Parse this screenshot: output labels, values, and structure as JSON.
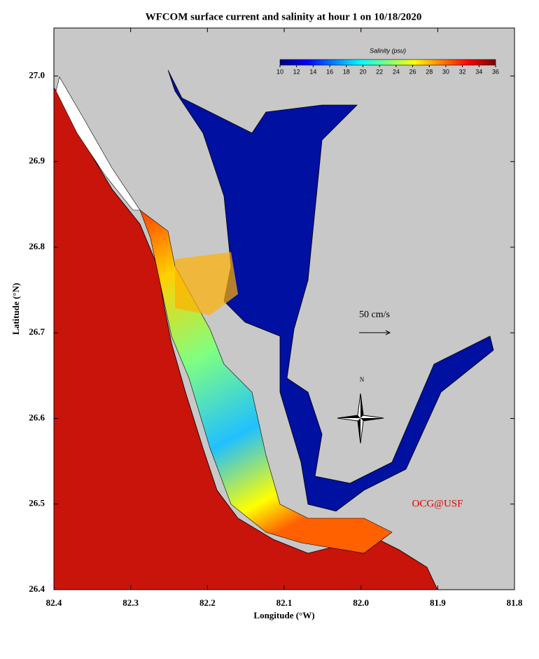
{
  "map": {
    "title": "WFCOM surface current and salinity at hour 1 on 10/18/2020",
    "x_axis": {
      "label": "Longitude (°W)",
      "lim": [
        82.4,
        81.8
      ],
      "ticks": [
        82.4,
        82.3,
        82.2,
        82.1,
        {
          "value": 82,
          "label": "82.0"
        },
        81.9,
        81.8
      ]
    },
    "y_axis": {
      "label": "Latitude (°N)",
      "lim": [
        26.4,
        27.056
      ],
      "ticks": [
        {
          "value": 26.4,
          "label": "26.4"
        },
        26.5,
        26.6,
        26.7,
        26.8,
        26.9,
        {
          "value": 27,
          "label": "27.0"
        }
      ]
    },
    "colorbar": {
      "title": "Salinity (psu)",
      "lim": [
        10,
        36
      ],
      "ticks": [
        10,
        12,
        14,
        16,
        18,
        20,
        22,
        24,
        26,
        28,
        30,
        32,
        34,
        36
      ],
      "colors": [
        "#00007f",
        "#0000ff",
        "#0080ff",
        "#00ffff",
        "#80ff80",
        "#ffff00",
        "#ff8000",
        "#ff0000",
        "#7f0000"
      ]
    },
    "scale_label": "50 cm/s",
    "north_label": "N",
    "credit": "OCG@USF"
  }
}
